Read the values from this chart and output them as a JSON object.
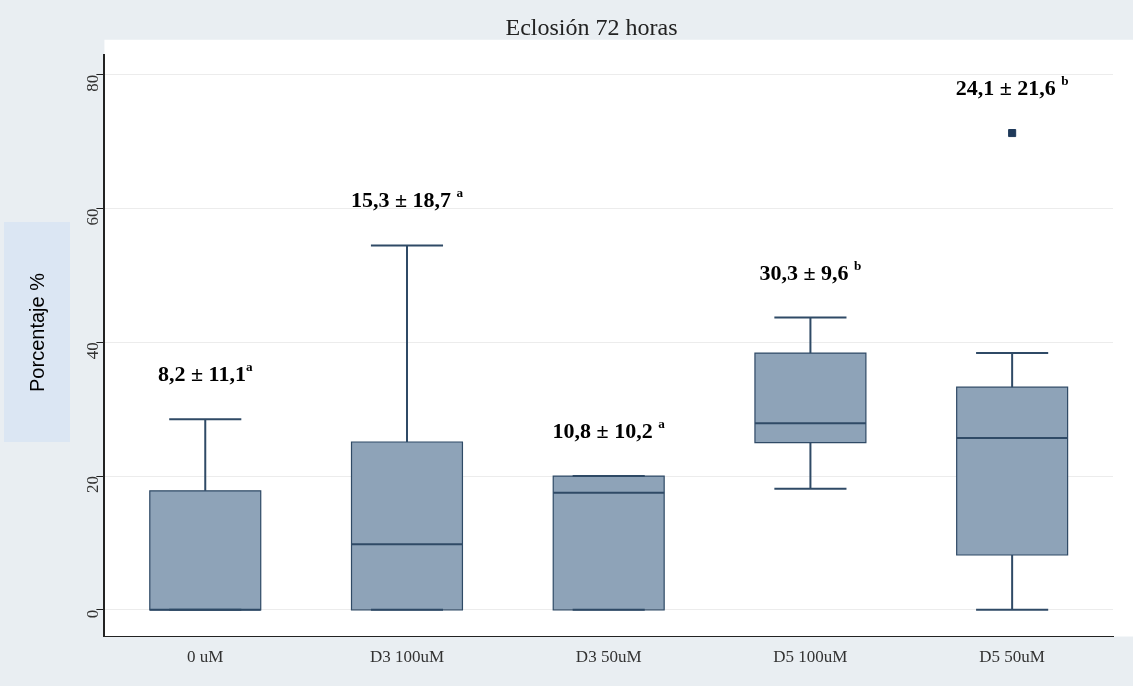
{
  "chart_data": {
    "type": "box",
    "title": "Eclosión 72 horas",
    "ylabel": "Porcentaje %",
    "categories": [
      "0 uM",
      "D3 100uM",
      "D3 50uM",
      "D5 100uM",
      "D5 50uM"
    ],
    "series": [
      {
        "color": "#8ea3b8",
        "boxes": [
          {
            "low": 0,
            "q1": 0,
            "median": 0,
            "q3": 17.8,
            "high": 28.5
          },
          {
            "low": 0,
            "q1": 0,
            "median": 9.8,
            "q3": 25.1,
            "high": 54.5
          },
          {
            "low": 0,
            "q1": 0,
            "median": 17.5,
            "q3": 20,
            "high": 20
          },
          {
            "low": 18.1,
            "q1": 25,
            "median": 27.9,
            "q3": 38.4,
            "high": 43.7
          },
          {
            "low": 0,
            "q1": 8.2,
            "median": 25.7,
            "q3": 33.3,
            "high": 38.4,
            "outliers": [
              71.3
            ]
          }
        ]
      }
    ],
    "ylim": [
      -4,
      83
    ],
    "yticks": [
      0,
      20,
      40,
      60,
      80
    ],
    "grid": "y",
    "legend": false,
    "annotations": [
      "8,2 ± 11,1$^{a}$",
      "15,3 ± 18,7 $^{a}$",
      "10,8 ± 10,2 $^{a}$",
      "30,3 ± 9,6 $^{b}$",
      "24,1 ± 21,6 $^{b}$"
    ]
  }
}
